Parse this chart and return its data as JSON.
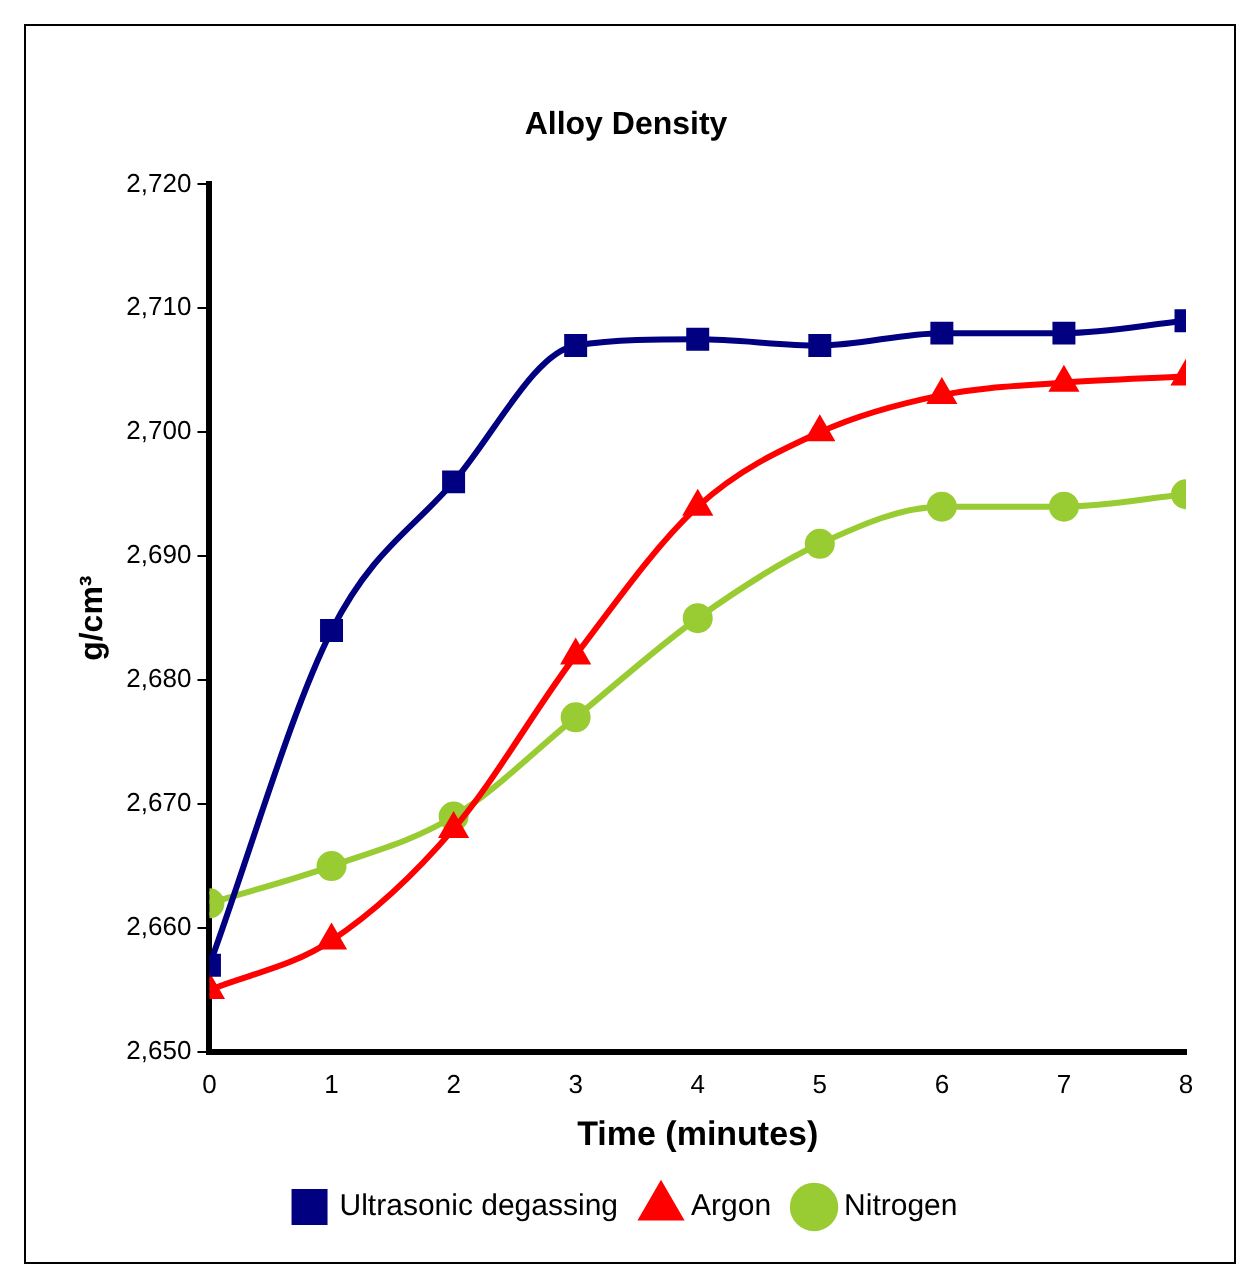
{
  "chart_data": {
    "type": "line",
    "title": "Alloy Density",
    "xlabel": "Time (minutes)",
    "ylabel": "g/cm³",
    "x": [
      0,
      1,
      2,
      3,
      4,
      5,
      6,
      7,
      8
    ],
    "series": [
      {
        "name": "Ultrasonic degassing",
        "color": "#000080",
        "marker": "square",
        "values": [
          2657,
          2684,
          2696,
          2707,
          2707.5,
          2707,
          2708,
          2708,
          2709
        ]
      },
      {
        "name": "Argon",
        "color": "#ff0000",
        "marker": "triangle",
        "values": [
          2655,
          2659,
          2668,
          2682,
          2694,
          2700,
          2703,
          2704,
          2704.5
        ]
      },
      {
        "name": "Nitrogen",
        "color": "#99cc33",
        "marker": "circle",
        "values": [
          2662,
          2665,
          2669,
          2677,
          2685,
          2691,
          2694,
          2694,
          2695
        ]
      }
    ],
    "xlim": [
      0,
      8
    ],
    "xticks": [
      0,
      1,
      2,
      3,
      4,
      5,
      6,
      7,
      8
    ],
    "ylim": [
      2650,
      2720
    ],
    "yticks": [
      {
        "value": 2650,
        "label": "2,650"
      },
      {
        "value": 2660,
        "label": "2,660"
      },
      {
        "value": 2670,
        "label": "2,670"
      },
      {
        "value": 2680,
        "label": "2,680"
      },
      {
        "value": 2690,
        "label": "2,690"
      },
      {
        "value": 2700,
        "label": "2,700"
      },
      {
        "value": 2710,
        "label": "2,710"
      },
      {
        "value": 2720,
        "label": "2,720"
      }
    ],
    "grid": false,
    "legend": "bottom"
  }
}
